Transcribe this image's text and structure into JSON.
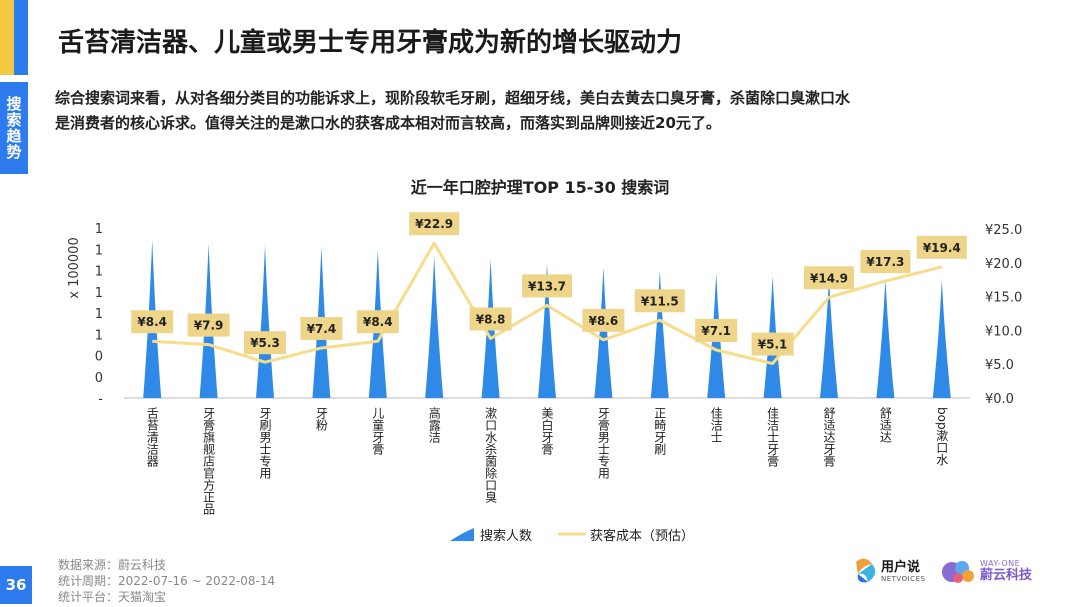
{
  "header": {
    "title": "舌苔清洁器、儿童或男士专用牙膏成为新的增长驱动力",
    "section_tag": "搜索趋势",
    "description_line1": "综合搜索词来看，从对各细分类目的功能诉求上，现阶段软毛牙刷，超细牙线，美白去黄去口臭牙膏，杀菌除口臭漱口水",
    "description_line2": "是消费者的核心诉求。值得关注的是漱口水的获客成本相对而言较高，而落实到品牌则接近20元了。"
  },
  "chart_data": {
    "type": "bar",
    "title": "近一年口腔护理TOP 15-30 搜索词",
    "ylabel": "x 100000",
    "left_tick_labels": [
      "-",
      "0",
      "0",
      "1",
      "1",
      "1",
      "1",
      "1",
      "1"
    ],
    "right_tick_labels": [
      "¥0.0",
      "¥5.0",
      "¥10.0",
      "¥15.0",
      "¥20.0",
      "¥25.0"
    ],
    "y2lim": [
      0,
      25
    ],
    "categories": [
      "舌苔清洁器",
      "牙膏旗舰店官方正品",
      "牙刷男士专用",
      "牙粉",
      "儿童牙膏",
      "高露洁",
      "漱口水杀菌除口臭",
      "美白牙膏",
      "牙膏男士专用",
      "正畸牙刷",
      "佳洁士",
      "佳洁士牙膏",
      "舒适达牙膏",
      "舒适达",
      "bop漱口水"
    ],
    "series": [
      {
        "name": "搜索人数",
        "kind": "bar",
        "color": "#2e8ae6",
        "values": [
          1.12,
          1.09,
          1.08,
          1.07,
          1.05,
          1.0,
          0.98,
          0.95,
          0.92,
          0.9,
          0.88,
          0.86,
          0.85,
          0.84,
          0.83
        ]
      },
      {
        "name": "获客成本（预估）",
        "kind": "line",
        "color": "#f7dc8a",
        "values": [
          8.4,
          7.9,
          5.3,
          7.4,
          8.4,
          22.9,
          8.8,
          13.7,
          8.6,
          11.5,
          7.1,
          5.1,
          14.9,
          17.3,
          19.4
        ],
        "labels": [
          "¥8.4",
          "¥7.9",
          "¥5.3",
          "¥7.4",
          "¥8.4",
          "¥22.9",
          "¥8.8",
          "¥13.7",
          "¥8.6",
          "¥11.5",
          "¥7.1",
          "¥5.1",
          "¥14.9",
          "¥17.3",
          "¥19.4"
        ]
      }
    ],
    "legend_position": "bottom",
    "grid": false
  },
  "footer": {
    "page_number": "36",
    "source": "数据来源：蔚云科技",
    "period": "统计周期：2022-07-16 ~ 2022-08-14",
    "platform": "统计平台：天猫淘宝"
  },
  "logos": {
    "yonghushuo_cn": "用户说",
    "yonghushuo_en": "NETVOICES",
    "weiyun_en": "WAY-ONE",
    "weiyun_cn": "蔚云科技"
  },
  "colors": {
    "accent": "#2e7bf0",
    "bar": "#2e8ae6",
    "line": "#f7dc8a",
    "label_box": "#eed58a"
  }
}
